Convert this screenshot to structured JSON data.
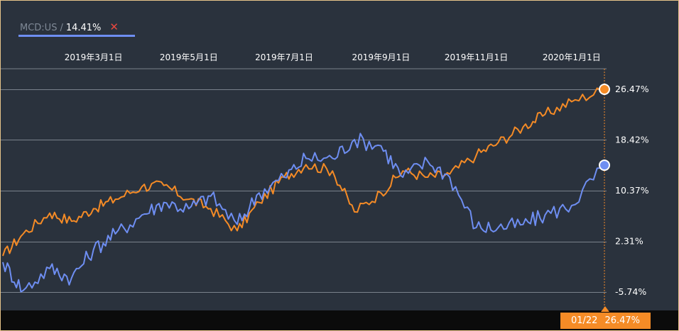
{
  "legend": {
    "ticker": "MCD:US",
    "separator": "/",
    "value": "14.41%",
    "close_symbol": "✕"
  },
  "crosshair": {
    "date_label": "01/22",
    "value_label": "26.47%"
  },
  "colors": {
    "background": "#2a323d",
    "grid": "#7a828c",
    "orange_series": "#f58b26",
    "blue_series": "#6e8ef2",
    "close_icon": "#e8483f",
    "border": "#e7c48a"
  },
  "chart_data": {
    "type": "line",
    "x_tick_labels": [
      "2019年3月1日",
      "2019年5月1日",
      "2019年7月1日",
      "2019年9月1日",
      "2019年11月1日",
      "2020年1月1日"
    ],
    "y_tick_labels": [
      "26.47%",
      "18.42%",
      "10.37%",
      "2.31%",
      "-5.74%"
    ],
    "y_ticks": [
      26.47,
      18.42,
      10.37,
      2.31,
      -5.74
    ],
    "ylim": [
      -9.5,
      30.5
    ],
    "x": [
      "2019-01-02",
      "2019-01-15",
      "2019-02-01",
      "2019-02-15",
      "2019-03-01",
      "2019-03-15",
      "2019-04-01",
      "2019-04-15",
      "2019-05-01",
      "2019-05-15",
      "2019-06-01",
      "2019-06-15",
      "2019-07-01",
      "2019-07-15",
      "2019-08-01",
      "2019-08-15",
      "2019-09-01",
      "2019-09-15",
      "2019-10-01",
      "2019-10-15",
      "2019-11-01",
      "2019-11-15",
      "2019-12-01",
      "2019-12-15",
      "2020-01-01",
      "2020-01-22"
    ],
    "series": [
      {
        "values": [
          0,
          3.5,
          6.8,
          5.5,
          7.5,
          9.0,
          11.0,
          11.2,
          9.0,
          7.5,
          4.0,
          8.5,
          12.5,
          14.5,
          13.5,
          7.0,
          10.0,
          13.5,
          12.5,
          13.0,
          16.0,
          18.0,
          20.5,
          22.5,
          24.5,
          26.47
        ],
        "color": "#f58b26"
      },
      {
        "values": [
          -1.0,
          -5.5,
          -2.0,
          -3.5,
          1.0,
          3.5,
          6.5,
          8.5,
          7.5,
          9.5,
          5.0,
          10.0,
          12.5,
          15.5,
          15.5,
          18.5,
          17.5,
          12.5,
          15.0,
          12.5,
          4.5,
          4.5,
          5.0,
          6.5,
          8.0,
          14.41
        ],
        "color": "#6e8ef2"
      }
    ],
    "end_values": [
      26.47,
      14.41
    ],
    "grid": true,
    "legend_position": "top-left"
  }
}
